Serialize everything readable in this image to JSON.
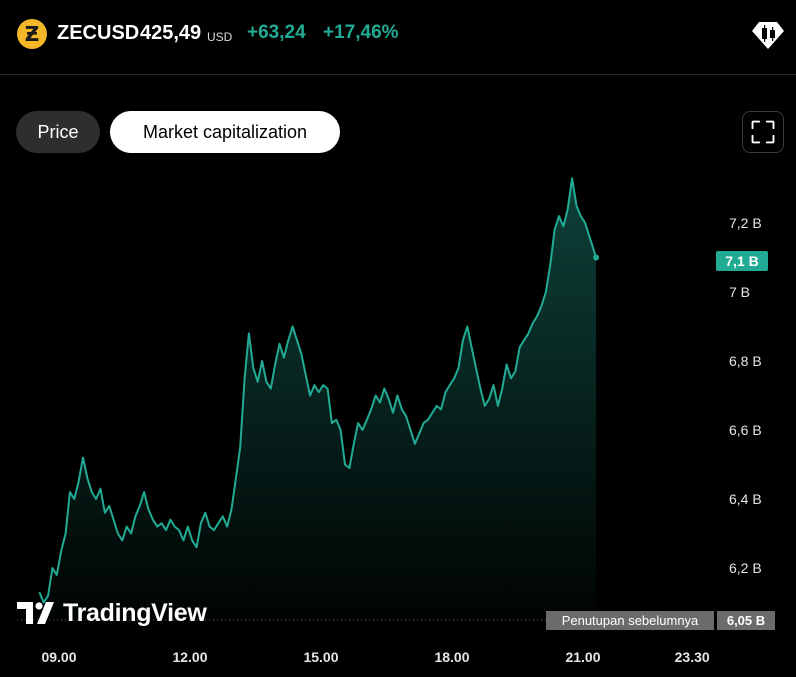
{
  "header": {
    "symbol": "ZECUSD",
    "price": "425,49",
    "currency": "USD",
    "change": "+63,24",
    "change_pct": "+17,46%",
    "coin_glyph": "Ƶ"
  },
  "tabs": [
    {
      "label": "Price",
      "active": false
    },
    {
      "label": "Market capitalization",
      "active": true
    }
  ],
  "logo": {
    "text": "TradingView"
  },
  "colors": {
    "line": "#22ab94",
    "accent_coin": "#f4b728",
    "background": "#000000"
  },
  "chart_data": {
    "type": "area",
    "y_unit": "B",
    "y_ticks": [
      {
        "value": 6.2,
        "label": "6,2 B"
      },
      {
        "value": 6.4,
        "label": "6,4 B"
      },
      {
        "value": 6.6,
        "label": "6,6 B"
      },
      {
        "value": 6.8,
        "label": "6,8 B"
      },
      {
        "value": 7.0,
        "label": "7 B"
      },
      {
        "value": 7.2,
        "label": "7,2 B"
      }
    ],
    "x_ticks": [
      {
        "value": 9.0,
        "label": "09.00"
      },
      {
        "value": 12.0,
        "label": "12.00"
      },
      {
        "value": 15.0,
        "label": "15.00"
      },
      {
        "value": 18.0,
        "label": "18.00"
      },
      {
        "value": 21.0,
        "label": "21.00"
      },
      {
        "value": 23.5,
        "label": "23.30"
      }
    ],
    "current_value": {
      "value": 7.1,
      "label": "7,1 B"
    },
    "previous_close": {
      "value": 6.05,
      "label": "6,05 B",
      "text": "Penutupan sebelumnya"
    },
    "points": [
      [
        8.55,
        6.13
      ],
      [
        8.65,
        6.1
      ],
      [
        8.75,
        6.12
      ],
      [
        8.85,
        6.2
      ],
      [
        8.95,
        6.18
      ],
      [
        9.05,
        6.25
      ],
      [
        9.15,
        6.3
      ],
      [
        9.25,
        6.42
      ],
      [
        9.35,
        6.4
      ],
      [
        9.45,
        6.45
      ],
      [
        9.55,
        6.52
      ],
      [
        9.65,
        6.46
      ],
      [
        9.75,
        6.42
      ],
      [
        9.85,
        6.4
      ],
      [
        9.95,
        6.43
      ],
      [
        10.05,
        6.36
      ],
      [
        10.15,
        6.38
      ],
      [
        10.25,
        6.34
      ],
      [
        10.35,
        6.3
      ],
      [
        10.45,
        6.28
      ],
      [
        10.55,
        6.32
      ],
      [
        10.65,
        6.3
      ],
      [
        10.75,
        6.35
      ],
      [
        10.85,
        6.38
      ],
      [
        10.95,
        6.42
      ],
      [
        11.05,
        6.37
      ],
      [
        11.15,
        6.34
      ],
      [
        11.25,
        6.32
      ],
      [
        11.35,
        6.33
      ],
      [
        11.45,
        6.31
      ],
      [
        11.55,
        6.34
      ],
      [
        11.65,
        6.32
      ],
      [
        11.75,
        6.31
      ],
      [
        11.85,
        6.28
      ],
      [
        11.95,
        6.32
      ],
      [
        12.05,
        6.28
      ],
      [
        12.15,
        6.26
      ],
      [
        12.25,
        6.33
      ],
      [
        12.35,
        6.36
      ],
      [
        12.45,
        6.32
      ],
      [
        12.55,
        6.31
      ],
      [
        12.65,
        6.33
      ],
      [
        12.75,
        6.35
      ],
      [
        12.85,
        6.32
      ],
      [
        12.95,
        6.37
      ],
      [
        13.05,
        6.46
      ],
      [
        13.15,
        6.55
      ],
      [
        13.25,
        6.75
      ],
      [
        13.35,
        6.88
      ],
      [
        13.45,
        6.78
      ],
      [
        13.55,
        6.74
      ],
      [
        13.65,
        6.8
      ],
      [
        13.75,
        6.74
      ],
      [
        13.85,
        6.72
      ],
      [
        13.95,
        6.79
      ],
      [
        14.05,
        6.85
      ],
      [
        14.15,
        6.81
      ],
      [
        14.25,
        6.86
      ],
      [
        14.35,
        6.9
      ],
      [
        14.45,
        6.86
      ],
      [
        14.55,
        6.82
      ],
      [
        14.65,
        6.76
      ],
      [
        14.75,
        6.7
      ],
      [
        14.85,
        6.73
      ],
      [
        14.95,
        6.71
      ],
      [
        15.05,
        6.73
      ],
      [
        15.15,
        6.72
      ],
      [
        15.25,
        6.62
      ],
      [
        15.35,
        6.63
      ],
      [
        15.45,
        6.6
      ],
      [
        15.55,
        6.5
      ],
      [
        15.65,
        6.49
      ],
      [
        15.75,
        6.56
      ],
      [
        15.85,
        6.62
      ],
      [
        15.95,
        6.6
      ],
      [
        16.05,
        6.63
      ],
      [
        16.15,
        6.66
      ],
      [
        16.25,
        6.7
      ],
      [
        16.35,
        6.68
      ],
      [
        16.45,
        6.72
      ],
      [
        16.55,
        6.69
      ],
      [
        16.65,
        6.65
      ],
      [
        16.75,
        6.7
      ],
      [
        16.85,
        6.66
      ],
      [
        16.95,
        6.64
      ],
      [
        17.05,
        6.6
      ],
      [
        17.15,
        6.56
      ],
      [
        17.25,
        6.59
      ],
      [
        17.35,
        6.62
      ],
      [
        17.45,
        6.63
      ],
      [
        17.55,
        6.65
      ],
      [
        17.65,
        6.67
      ],
      [
        17.75,
        6.66
      ],
      [
        17.85,
        6.71
      ],
      [
        17.95,
        6.73
      ],
      [
        18.05,
        6.75
      ],
      [
        18.15,
        6.78
      ],
      [
        18.25,
        6.86
      ],
      [
        18.35,
        6.9
      ],
      [
        18.45,
        6.84
      ],
      [
        18.55,
        6.78
      ],
      [
        18.65,
        6.72
      ],
      [
        18.75,
        6.67
      ],
      [
        18.85,
        6.69
      ],
      [
        18.95,
        6.73
      ],
      [
        19.05,
        6.67
      ],
      [
        19.15,
        6.72
      ],
      [
        19.25,
        6.79
      ],
      [
        19.35,
        6.75
      ],
      [
        19.45,
        6.77
      ],
      [
        19.55,
        6.84
      ],
      [
        19.65,
        6.86
      ],
      [
        19.75,
        6.88
      ],
      [
        19.85,
        6.91
      ],
      [
        19.95,
        6.93
      ],
      [
        20.05,
        6.96
      ],
      [
        20.15,
        7.0
      ],
      [
        20.25,
        7.08
      ],
      [
        20.35,
        7.18
      ],
      [
        20.45,
        7.22
      ],
      [
        20.55,
        7.19
      ],
      [
        20.65,
        7.24
      ],
      [
        20.75,
        7.33
      ],
      [
        20.85,
        7.25
      ],
      [
        20.95,
        7.22
      ],
      [
        21.05,
        7.2
      ],
      [
        21.15,
        7.16
      ],
      [
        21.25,
        7.12
      ],
      [
        21.3,
        7.1
      ]
    ]
  }
}
